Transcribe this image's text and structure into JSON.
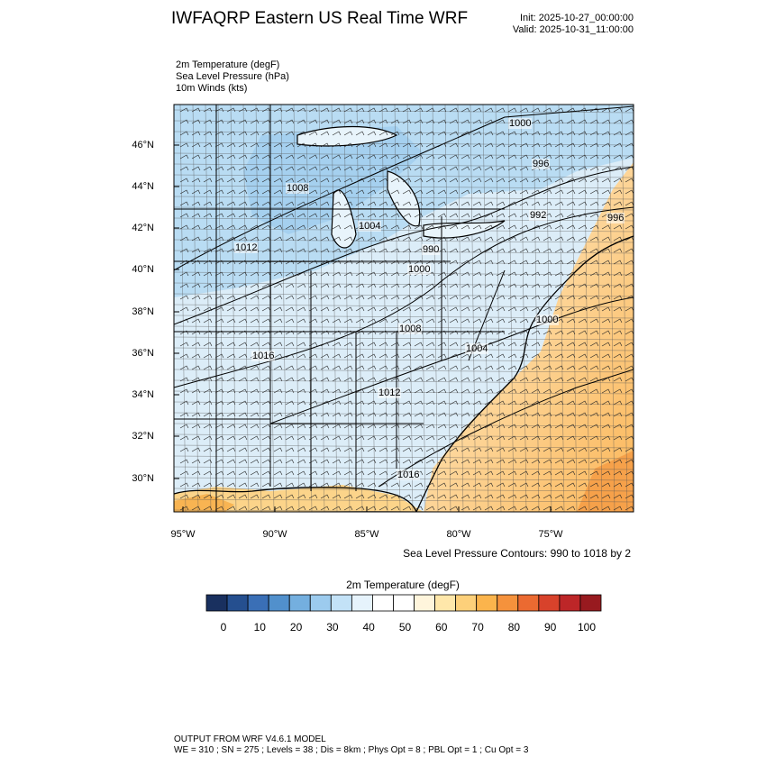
{
  "header": {
    "title": "IWFAQRP Eastern US Real Time WRF",
    "init": "Init: 2025-10-27_00:00:00",
    "valid": "Valid: 2025-10-31_11:00:00"
  },
  "fields": [
    "2m Temperature   (degF)",
    "Sea Level Pressure   (hPa)",
    "10m Winds   (kts)"
  ],
  "axes": {
    "lat_labels": [
      "46°N",
      "44°N",
      "42°N",
      "40°N",
      "38°N",
      "36°N",
      "34°N",
      "32°N",
      "30°N"
    ],
    "lon_labels": [
      "95°W",
      "90°W",
      "85°W",
      "80°W",
      "75°W"
    ]
  },
  "pressure_labels": [
    "1000",
    "996",
    "1008",
    "992",
    "996",
    "1004",
    "1012",
    "990",
    "1000",
    "1008",
    "1000",
    "1004",
    "1016",
    "1012",
    "1016"
  ],
  "contour_note": "Sea Level Pressure Contours: 990 to 1018 by 2",
  "colorbar": {
    "title": "2m Temperature  (degF)",
    "ticks": [
      "0",
      "10",
      "20",
      "30",
      "40",
      "50",
      "60",
      "70",
      "80",
      "90",
      "100"
    ],
    "colors": [
      "#19305f",
      "#254f8f",
      "#3a6fb6",
      "#5190cc",
      "#74afdf",
      "#9ccbee",
      "#c3e2f7",
      "#e6f3fc",
      "#ffffff",
      "#ffffff",
      "#fff5dc",
      "#ffe7aa",
      "#fdd07a",
      "#fbb44c",
      "#f5923c",
      "#eb6a31",
      "#d8422b",
      "#bd2628",
      "#981a1f"
    ]
  },
  "footer": {
    "line1": "OUTPUT FROM WRF V4.6.1 MODEL",
    "line2": "WE = 310 ; SN = 275 ; Levels = 38 ; Dis = 8km ; Phys Opt = 8 ; PBL Opt = 1 ; Cu Opt = 3"
  }
}
